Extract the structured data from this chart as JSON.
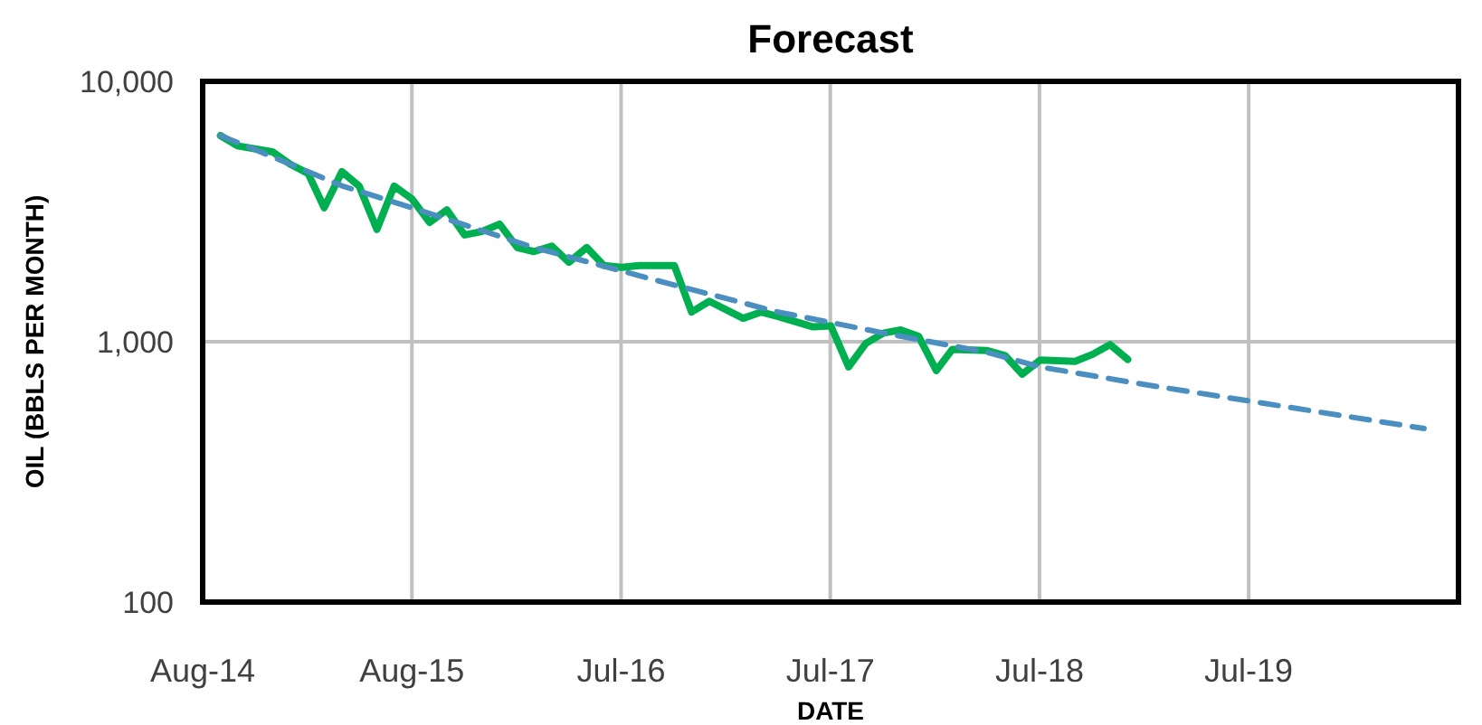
{
  "chart_data": {
    "type": "line",
    "title": "Forecast",
    "xlabel": "DATE",
    "ylabel": "OIL (BBLS PER MONTH)",
    "log": "y",
    "grid": true,
    "marker": "none",
    "xlim": [
      "2014-08-01",
      "2020-07-31"
    ],
    "xticks": [
      {
        "value": "2014-08-01",
        "label": "Aug-14"
      },
      {
        "value": "2015-08-01",
        "label": "Aug-15"
      },
      {
        "value": "2016-07-31",
        "label": "Jul-16"
      },
      {
        "value": "2017-07-31",
        "label": "Jul-17"
      },
      {
        "value": "2018-07-31",
        "label": "Jul-18"
      },
      {
        "value": "2019-07-31",
        "label": "Jul-19"
      }
    ],
    "ylim": [
      100,
      10000
    ],
    "yticks": [
      {
        "value": 100,
        "label": "100"
      },
      {
        "value": 1000,
        "label": "1,000"
      },
      {
        "value": 10000,
        "label": "10,000"
      }
    ],
    "series": [
      {
        "color": "#00b050",
        "line_style": "solid",
        "x": [
          "2014-09",
          "2014-10",
          "2014-12",
          "2015-01",
          "2015-02",
          "2015-03",
          "2015-04",
          "2015-05",
          "2015-06",
          "2015-07",
          "2015-08",
          "2015-09",
          "2015-10",
          "2015-11",
          "2015-12",
          "2016-01",
          "2016-02",
          "2016-03",
          "2016-04",
          "2016-05",
          "2016-06",
          "2016-07",
          "2016-08",
          "2016-09",
          "2016-10",
          "2016-11",
          "2016-12",
          "2017-01",
          "2017-03",
          "2017-04",
          "2017-05",
          "2017-07",
          "2017-08",
          "2017-09",
          "2017-10",
          "2017-11",
          "2017-12",
          "2018-01",
          "2018-02",
          "2018-03",
          "2018-05",
          "2018-06",
          "2018-07",
          "2018-08",
          "2018-10",
          "2018-11",
          "2018-12",
          "2019-01"
        ],
        "values": [
          6190,
          5650,
          5360,
          4800,
          4430,
          3270,
          4500,
          3960,
          2700,
          3960,
          3540,
          2870,
          3210,
          2570,
          2650,
          2830,
          2300,
          2220,
          2330,
          2020,
          2300,
          1960,
          1930,
          1960,
          1960,
          1960,
          1300,
          1430,
          1230,
          1300,
          1250,
          1140,
          1150,
          800,
          985,
          1080,
          1110,
          1050,
          775,
          935,
          925,
          885,
          750,
          850,
          840,
          895,
          975,
          855
        ]
      },
      {
        "color": "#4a8fc0",
        "line_style": "dashed",
        "x": [
          "2014-09",
          "2014-12",
          "2015-04",
          "2015-08",
          "2016-03",
          "2016-08",
          "2016-10",
          "2017-05",
          "2017-11",
          "2018-05",
          "2018-08",
          "2019-02",
          "2020-06"
        ],
        "values": [
          6190,
          5130,
          3970,
          3270,
          2300,
          1870,
          1720,
          1300,
          1080,
          910,
          800,
          684,
          464
        ]
      }
    ]
  }
}
